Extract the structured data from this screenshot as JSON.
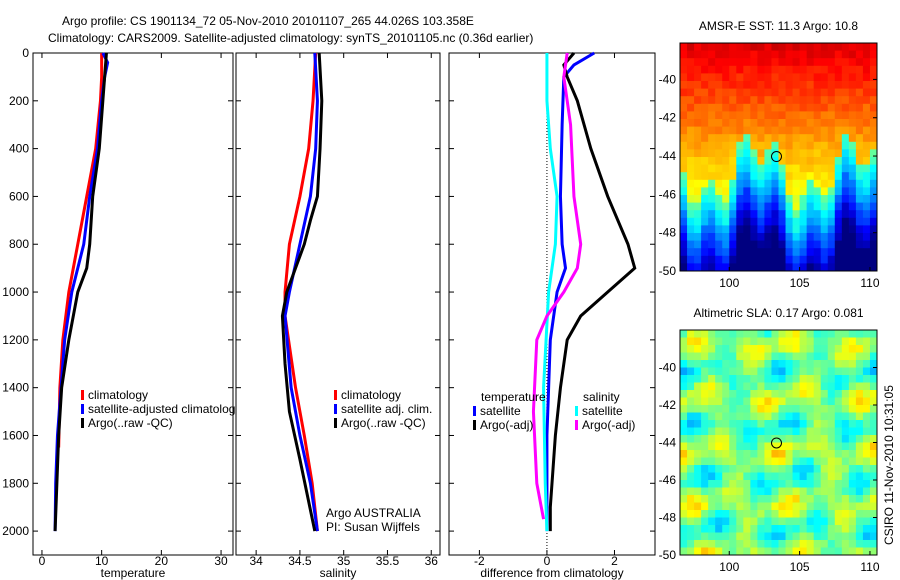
{
  "title_line1": "Argo profile: CS 1901134_72 05-Nov-2010 20101107_265 44.026S 103.358E",
  "title_line2": "Climatology: CARS2009. Satellite-adjusted climatology: synTS_20101105.nc (0.36d earlier)",
  "credit": "CSIRO 11-Nov-2010 10:31:05",
  "chart_data": [
    {
      "type": "line",
      "id": "temperature",
      "xlabel": "temperature",
      "ylabel": "",
      "xlim": [
        -1.5,
        32
      ],
      "ylim": [
        2100,
        0
      ],
      "xticks": [
        0,
        10,
        20,
        30
      ],
      "yticks": [
        0,
        200,
        400,
        600,
        800,
        1000,
        1200,
        1400,
        1600,
        1800,
        2000
      ],
      "legend": [
        "climatology",
        "satellite-adjusted climatology",
        "Argo(..raw -QC)"
      ],
      "series": [
        {
          "name": "climatology",
          "color": "#ff0000",
          "x": [
            10,
            10,
            9.8,
            9,
            7.5,
            6,
            4.5,
            3.5,
            3,
            2.8
          ],
          "y": [
            0,
            100,
            200,
            400,
            600,
            800,
            1000,
            1200,
            1400,
            1650
          ]
        },
        {
          "name": "satellite-adjusted climatology",
          "color": "#0000ff",
          "x": [
            10.2,
            11,
            10.5,
            10,
            9.3,
            8,
            7,
            5,
            3.8,
            3.2,
            2.6,
            2.3,
            2.2
          ],
          "y": [
            0,
            40,
            100,
            200,
            400,
            600,
            800,
            1000,
            1200,
            1400,
            1600,
            1800,
            2000
          ]
        },
        {
          "name": "Argo(..raw -QC)",
          "color": "#000000",
          "x": [
            10.8,
            10.5,
            10.2,
            9.6,
            8.5,
            8,
            7.5,
            6,
            4.5,
            3.3,
            2.8,
            2.5,
            2.2
          ],
          "y": [
            0,
            100,
            200,
            400,
            600,
            800,
            900,
            1000,
            1200,
            1400,
            1600,
            1800,
            2000
          ]
        }
      ]
    },
    {
      "type": "line",
      "id": "salinity",
      "xlabel": "salinity",
      "xlim": [
        33.77,
        36.1
      ],
      "ylim": [
        2100,
        0
      ],
      "xticks": [
        34,
        34.5,
        35,
        35.5,
        36
      ],
      "legend": [
        "climatology",
        "satellite adj. clim.",
        "Argo(..raw -QC)"
      ],
      "annotation": [
        "Argo AUSTRALIA",
        "PI: Susan Wijffels"
      ],
      "series": [
        {
          "name": "climatology",
          "color": "#ff0000",
          "x": [
            34.68,
            34.65,
            34.6,
            34.5,
            34.38,
            34.33,
            34.33,
            34.45,
            34.55,
            34.64,
            34.7
          ],
          "y": [
            0,
            200,
            400,
            600,
            800,
            1000,
            1100,
            1400,
            1600,
            1800,
            2000
          ]
        },
        {
          "name": "satellite adj. clim.",
          "color": "#0000ff",
          "x": [
            34.67,
            34.7,
            34.68,
            34.62,
            34.5,
            34.38,
            34.33,
            34.4,
            34.5,
            34.62,
            34.7
          ],
          "y": [
            0,
            200,
            400,
            600,
            800,
            1000,
            1100,
            1400,
            1600,
            1800,
            2000
          ]
        },
        {
          "name": "Argo(..raw -QC)",
          "color": "#000000",
          "x": [
            34.72,
            34.75,
            34.73,
            34.7,
            34.62,
            34.55,
            34.45,
            34.35,
            34.3,
            34.33,
            34.38,
            34.5,
            34.67
          ],
          "y": [
            0,
            200,
            400,
            600,
            700,
            800,
            900,
            1000,
            1100,
            1300,
            1500,
            1700,
            2000
          ]
        }
      ]
    },
    {
      "type": "line",
      "id": "difference",
      "xlabel": "difference from climatology",
      "xlim": [
        -2.9,
        3.2
      ],
      "ylim": [
        2100,
        0
      ],
      "xticks": [
        -2,
        0,
        2
      ],
      "legend_headers": [
        "temperature",
        "salinity"
      ],
      "legend": [
        "satellite",
        "Argo(-adj)",
        "satellite",
        "Argo(-adj)"
      ],
      "series": [
        {
          "name": "temperature satellite",
          "color": "#0000ff",
          "x": [
            1.4,
            0.8,
            0.5,
            0.45,
            0.4,
            0.45,
            0.55,
            0.3,
            0.1,
            0.05,
            0,
            0
          ],
          "y": [
            0,
            50,
            100,
            300,
            600,
            800,
            900,
            1000,
            1200,
            1400,
            1600,
            2000
          ]
        },
        {
          "name": "temperature Argo(-adj)",
          "color": "#000000",
          "x": [
            0.8,
            0.5,
            0.6,
            0.9,
            1.3,
            1.8,
            2.4,
            2.6,
            1.8,
            1.0,
            0.6,
            0.4,
            0.25,
            0.1,
            0.1
          ],
          "y": [
            0,
            50,
            100,
            200,
            400,
            600,
            800,
            900,
            1000,
            1100,
            1200,
            1400,
            1600,
            1900,
            2000
          ]
        },
        {
          "name": "salinity satellite",
          "color": "#00ffff",
          "x": [
            0,
            0,
            0.1,
            0.3,
            0.25,
            0.05,
            -0.1,
            -0.05,
            0
          ],
          "y": [
            0,
            200,
            400,
            600,
            800,
            1000,
            1400,
            1800,
            2000
          ]
        },
        {
          "name": "salinity Argo(-adj)",
          "color": "#ff00ff",
          "x": [
            0.6,
            0.5,
            0.7,
            0.8,
            1.0,
            0.9,
            0.5,
            0,
            -0.3,
            -0.4,
            -0.3,
            -0.1
          ],
          "y": [
            0,
            100,
            300,
            600,
            800,
            900,
            1000,
            1100,
            1200,
            1500,
            1800,
            1950
          ]
        }
      ]
    },
    {
      "type": "heatmap",
      "id": "sst",
      "title": "AMSR-E SST: 11.3 Argo: 10.8",
      "xlim": [
        96.5,
        110.5
      ],
      "ylim": [
        -50,
        -38.1
      ],
      "xticks": [
        100,
        105,
        110
      ],
      "yticks": [
        -40,
        -42,
        -44,
        -46,
        -48,
        -50
      ],
      "marker": [
        103.358,
        -44.026
      ]
    },
    {
      "type": "heatmap",
      "id": "sla",
      "title": "Altimetric SLA: 0.17 Argo: 0.081",
      "xlim": [
        96.5,
        110.5
      ],
      "ylim": [
        -50,
        -38
      ],
      "xticks": [
        100,
        105,
        110
      ],
      "yticks": [
        -40,
        -42,
        -44,
        -46,
        -48,
        -50
      ],
      "marker": [
        103.358,
        -44.026
      ]
    }
  ]
}
